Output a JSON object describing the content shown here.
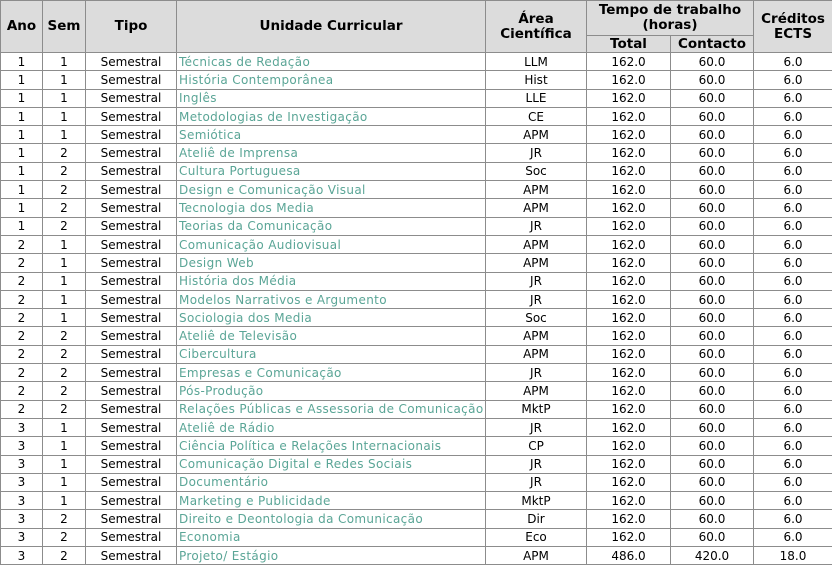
{
  "headers": {
    "ano": "Ano",
    "sem": "Sem",
    "tipo": "Tipo",
    "uc": "Unidade Curricular",
    "area": "Área Científica",
    "tempo": "Tempo de trabalho (horas)",
    "total": "Total",
    "contacto": "Contacto",
    "ects": "Créditos ECTS"
  },
  "rows": [
    {
      "ano": "1",
      "sem": "1",
      "tipo": "Semestral",
      "uc": "Técnicas de Redação",
      "area": "LLM",
      "total": "162.0",
      "contacto": "60.0",
      "ects": "6.0"
    },
    {
      "ano": "1",
      "sem": "1",
      "tipo": "Semestral",
      "uc": "História Contemporânea",
      "area": "Hist",
      "total": "162.0",
      "contacto": "60.0",
      "ects": "6.0"
    },
    {
      "ano": "1",
      "sem": "1",
      "tipo": "Semestral",
      "uc": "Inglês",
      "area": "LLE",
      "total": "162.0",
      "contacto": "60.0",
      "ects": "6.0"
    },
    {
      "ano": "1",
      "sem": "1",
      "tipo": "Semestral",
      "uc": "Metodologias de Investigação",
      "area": "CE",
      "total": "162.0",
      "contacto": "60.0",
      "ects": "6.0"
    },
    {
      "ano": "1",
      "sem": "1",
      "tipo": "Semestral",
      "uc": "Semiótica",
      "area": "APM",
      "total": "162.0",
      "contacto": "60.0",
      "ects": "6.0"
    },
    {
      "ano": "1",
      "sem": "2",
      "tipo": "Semestral",
      "uc": "Ateliê de Imprensa",
      "area": "JR",
      "total": "162.0",
      "contacto": "60.0",
      "ects": "6.0"
    },
    {
      "ano": "1",
      "sem": "2",
      "tipo": "Semestral",
      "uc": "Cultura Portuguesa",
      "area": "Soc",
      "total": "162.0",
      "contacto": "60.0",
      "ects": "6.0"
    },
    {
      "ano": "1",
      "sem": "2",
      "tipo": "Semestral",
      "uc": "Design e Comunicação Visual",
      "area": "APM",
      "total": "162.0",
      "contacto": "60.0",
      "ects": "6.0"
    },
    {
      "ano": "1",
      "sem": "2",
      "tipo": "Semestral",
      "uc": "Tecnologia dos Media",
      "area": "APM",
      "total": "162.0",
      "contacto": "60.0",
      "ects": "6.0"
    },
    {
      "ano": "1",
      "sem": "2",
      "tipo": "Semestral",
      "uc": "Teorias da Comunicação",
      "area": "JR",
      "total": "162.0",
      "contacto": "60.0",
      "ects": "6.0"
    },
    {
      "ano": "2",
      "sem": "1",
      "tipo": "Semestral",
      "uc": "Comunicação Audiovisual",
      "area": "APM",
      "total": "162.0",
      "contacto": "60.0",
      "ects": "6.0"
    },
    {
      "ano": "2",
      "sem": "1",
      "tipo": "Semestral",
      "uc": "Design Web",
      "area": "APM",
      "total": "162.0",
      "contacto": "60.0",
      "ects": "6.0"
    },
    {
      "ano": "2",
      "sem": "1",
      "tipo": "Semestral",
      "uc": "História dos Média",
      "area": "JR",
      "total": "162.0",
      "contacto": "60.0",
      "ects": "6.0"
    },
    {
      "ano": "2",
      "sem": "1",
      "tipo": "Semestral",
      "uc": "Modelos Narrativos e Argumento",
      "area": "JR",
      "total": "162.0",
      "contacto": "60.0",
      "ects": "6.0"
    },
    {
      "ano": "2",
      "sem": "1",
      "tipo": "Semestral",
      "uc": "Sociologia dos Media",
      "area": "Soc",
      "total": "162.0",
      "contacto": "60.0",
      "ects": "6.0"
    },
    {
      "ano": "2",
      "sem": "2",
      "tipo": "Semestral",
      "uc": "Ateliê de Televisão",
      "area": "APM",
      "total": "162.0",
      "contacto": "60.0",
      "ects": "6.0"
    },
    {
      "ano": "2",
      "sem": "2",
      "tipo": "Semestral",
      "uc": "Cibercultura",
      "area": "APM",
      "total": "162.0",
      "contacto": "60.0",
      "ects": "6.0"
    },
    {
      "ano": "2",
      "sem": "2",
      "tipo": "Semestral",
      "uc": "Empresas e Comunicação",
      "area": "JR",
      "total": "162.0",
      "contacto": "60.0",
      "ects": "6.0"
    },
    {
      "ano": "2",
      "sem": "2",
      "tipo": "Semestral",
      "uc": "Pós-Produção",
      "area": "APM",
      "total": "162.0",
      "contacto": "60.0",
      "ects": "6.0"
    },
    {
      "ano": "2",
      "sem": "2",
      "tipo": "Semestral",
      "uc": "Relações Públicas e Assessoria de Comunicação",
      "area": "MktP",
      "total": "162.0",
      "contacto": "60.0",
      "ects": "6.0"
    },
    {
      "ano": "3",
      "sem": "1",
      "tipo": "Semestral",
      "uc": "Ateliê de Rádio",
      "area": "JR",
      "total": "162.0",
      "contacto": "60.0",
      "ects": "6.0"
    },
    {
      "ano": "3",
      "sem": "1",
      "tipo": "Semestral",
      "uc": "Ciência Política e Relações Internacionais",
      "area": "CP",
      "total": "162.0",
      "contacto": "60.0",
      "ects": "6.0"
    },
    {
      "ano": "3",
      "sem": "1",
      "tipo": "Semestral",
      "uc": "Comunicação Digital e Redes Sociais",
      "area": "JR",
      "total": "162.0",
      "contacto": "60.0",
      "ects": "6.0"
    },
    {
      "ano": "3",
      "sem": "1",
      "tipo": "Semestral",
      "uc": "Documentário",
      "area": "JR",
      "total": "162.0",
      "contacto": "60.0",
      "ects": "6.0"
    },
    {
      "ano": "3",
      "sem": "1",
      "tipo": "Semestral",
      "uc": "Marketing e Publicidade",
      "area": "MktP",
      "total": "162.0",
      "contacto": "60.0",
      "ects": "6.0"
    },
    {
      "ano": "3",
      "sem": "2",
      "tipo": "Semestral",
      "uc": "Direito e Deontologia da Comunicação",
      "area": "Dir",
      "total": "162.0",
      "contacto": "60.0",
      "ects": "6.0"
    },
    {
      "ano": "3",
      "sem": "2",
      "tipo": "Semestral",
      "uc": "Economia",
      "area": "Eco",
      "total": "162.0",
      "contacto": "60.0",
      "ects": "6.0"
    },
    {
      "ano": "3",
      "sem": "2",
      "tipo": "Semestral",
      "uc": "Projeto/ Estágio",
      "area": "APM",
      "total": "486.0",
      "contacto": "420.0",
      "ects": "18.0"
    }
  ],
  "colors": {
    "header_bg": "#dcdcdc",
    "link": "#5aa596",
    "border": "#8c8c8c"
  }
}
